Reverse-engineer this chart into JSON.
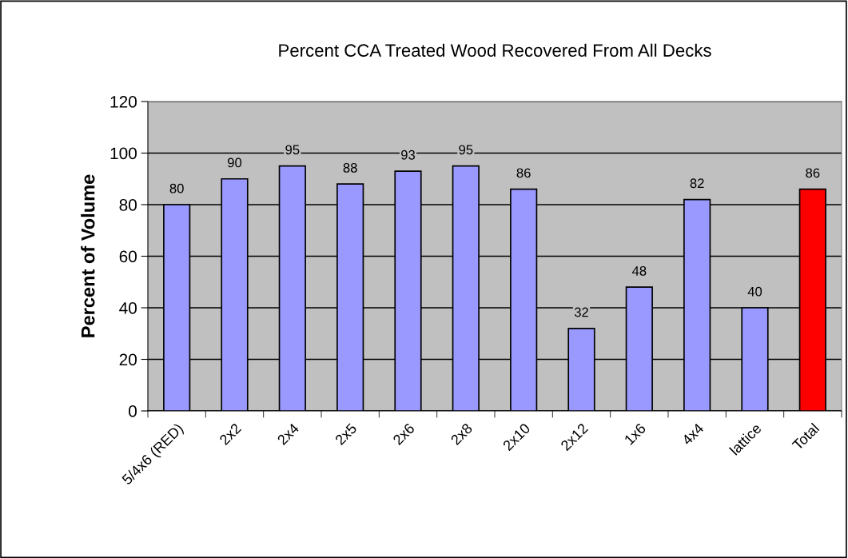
{
  "chart_data": {
    "type": "bar",
    "title": "Percent CCA Treated Wood Recovered From All Decks",
    "ylabel": "Percent of Volume",
    "categories": [
      "5/4x6 (RED)",
      "2x2",
      "2x4",
      "2x5",
      "2x6",
      "2x8",
      "2x10",
      "2x12",
      "1x6",
      "4x4",
      "lattice",
      "Total"
    ],
    "values": [
      80,
      90,
      95,
      88,
      93,
      95,
      86,
      32,
      48,
      82,
      40,
      86
    ],
    "colors": [
      "#9999ff",
      "#9999ff",
      "#9999ff",
      "#9999ff",
      "#9999ff",
      "#9999ff",
      "#9999ff",
      "#9999ff",
      "#9999ff",
      "#9999ff",
      "#9999ff",
      "#ff0000"
    ],
    "ylim": [
      0,
      120
    ],
    "yticks": [
      0,
      20,
      40,
      60,
      80,
      100,
      120
    ],
    "grid": "y",
    "data_labels": true
  }
}
